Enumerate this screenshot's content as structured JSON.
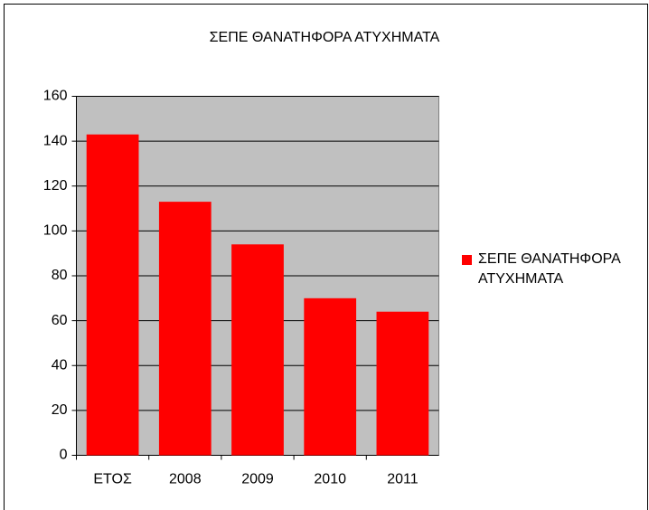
{
  "chart_data": {
    "type": "bar",
    "title": "ΣΕΠΕ ΘΑΝΑΤΗΦΟΡΑ ΑΤΥΧΗΜΑΤΑ",
    "categories": [
      "ΕΤΟΣ",
      "2008",
      "2009",
      "2010",
      "2011"
    ],
    "series": [
      {
        "name": "ΣΕΠΕ ΘΑΝΑΤΗΦΟΡΑ ΑΤΥΧΗΜΑΤΑ",
        "color": "#ff0000",
        "values": [
          143,
          113,
          94,
          70,
          64
        ]
      }
    ],
    "ylim": [
      0,
      160
    ],
    "yticks": [
      0,
      20,
      40,
      60,
      80,
      100,
      120,
      140,
      160
    ],
    "grid": true,
    "legend": "right"
  }
}
